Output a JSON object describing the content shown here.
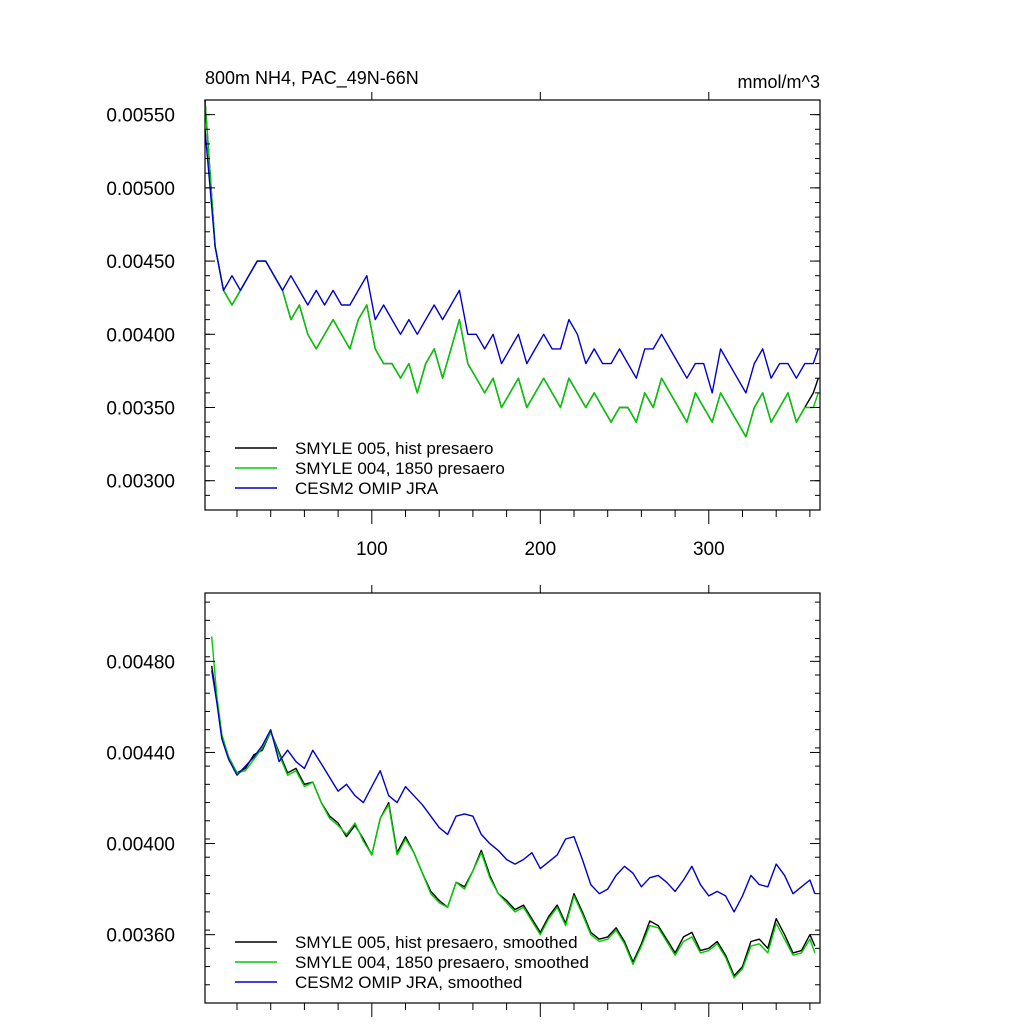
{
  "chart_data": [
    {
      "type": "line",
      "title": "800m NH4, PAC_49N-66N",
      "units_label": "mmol/m^3",
      "xlim": [
        1,
        366
      ],
      "ylim": [
        0.0028,
        0.0056
      ],
      "xticks": [
        100,
        200,
        300
      ],
      "xtick_labels": [
        "100",
        "200",
        "300"
      ],
      "yticks": [
        0.0055,
        0.005,
        0.0045,
        0.004,
        0.0035,
        0.003
      ],
      "ytick_labels": [
        "0.00550",
        "0.00500",
        "0.00450",
        "0.00400",
        "0.00350",
        "0.00300"
      ],
      "legend_position": "bottom-left",
      "series": [
        {
          "name": "SMYLE 005, hist presaero",
          "color": "#000000",
          "x": [
            1,
            4,
            7,
            12,
            17,
            22,
            27,
            32,
            37,
            42,
            47,
            52,
            57,
            62,
            67,
            72,
            77,
            82,
            87,
            92,
            97,
            102,
            107,
            112,
            117,
            122,
            127,
            132,
            137,
            142,
            147,
            152,
            157,
            162,
            167,
            172,
            177,
            182,
            187,
            192,
            197,
            202,
            207,
            212,
            217,
            222,
            227,
            232,
            237,
            242,
            247,
            252,
            257,
            262,
            267,
            272,
            277,
            282,
            287,
            292,
            297,
            302,
            307,
            312,
            317,
            322,
            327,
            332,
            337,
            342,
            347,
            352,
            357,
            362,
            365
          ],
          "y": [
            0.0056,
            0.0051,
            0.0046,
            0.0043,
            0.0042,
            0.0043,
            0.0044,
            0.0045,
            0.0045,
            0.0044,
            0.0043,
            0.0041,
            0.0042,
            0.004,
            0.0039,
            0.004,
            0.0041,
            0.004,
            0.0039,
            0.0041,
            0.0042,
            0.0039,
            0.0038,
            0.0038,
            0.0037,
            0.0038,
            0.0036,
            0.0038,
            0.0039,
            0.0037,
            0.0039,
            0.0041,
            0.0038,
            0.0037,
            0.0036,
            0.0037,
            0.0035,
            0.0036,
            0.0037,
            0.0035,
            0.0036,
            0.0037,
            0.0036,
            0.0035,
            0.0037,
            0.0036,
            0.0035,
            0.0036,
            0.0035,
            0.0034,
            0.0035,
            0.0035,
            0.0034,
            0.0036,
            0.0035,
            0.0037,
            0.0036,
            0.0035,
            0.0034,
            0.0036,
            0.0035,
            0.0034,
            0.0036,
            0.0035,
            0.0034,
            0.0033,
            0.0035,
            0.0036,
            0.0034,
            0.0035,
            0.0036,
            0.0034,
            0.0035,
            0.0036,
            0.0037
          ]
        },
        {
          "name": "SMYLE 004, 1850 presaero",
          "color": "#00cc00",
          "x": [
            1,
            4,
            7,
            12,
            17,
            22,
            27,
            32,
            37,
            42,
            47,
            52,
            57,
            62,
            67,
            72,
            77,
            82,
            87,
            92,
            97,
            102,
            107,
            112,
            117,
            122,
            127,
            132,
            137,
            142,
            147,
            152,
            157,
            162,
            167,
            172,
            177,
            182,
            187,
            192,
            197,
            202,
            207,
            212,
            217,
            222,
            227,
            232,
            237,
            242,
            247,
            252,
            257,
            262,
            267,
            272,
            277,
            282,
            287,
            292,
            297,
            302,
            307,
            312,
            317,
            322,
            327,
            332,
            337,
            342,
            347,
            352,
            357,
            362,
            365
          ],
          "y": [
            0.0056,
            0.0051,
            0.0046,
            0.0043,
            0.0042,
            0.0043,
            0.0044,
            0.0045,
            0.0045,
            0.0044,
            0.0043,
            0.0041,
            0.0042,
            0.004,
            0.0039,
            0.004,
            0.0041,
            0.004,
            0.0039,
            0.0041,
            0.0042,
            0.0039,
            0.0038,
            0.0038,
            0.0037,
            0.0038,
            0.0036,
            0.0038,
            0.0039,
            0.0037,
            0.0039,
            0.0041,
            0.0038,
            0.0037,
            0.0036,
            0.0037,
            0.0035,
            0.0036,
            0.0037,
            0.0035,
            0.0036,
            0.0037,
            0.0036,
            0.0035,
            0.0037,
            0.0036,
            0.0035,
            0.0036,
            0.0035,
            0.0034,
            0.0035,
            0.0035,
            0.0034,
            0.0036,
            0.0035,
            0.0037,
            0.0036,
            0.0035,
            0.0034,
            0.0036,
            0.0035,
            0.0034,
            0.0036,
            0.0035,
            0.0034,
            0.0033,
            0.0035,
            0.0036,
            0.0034,
            0.0035,
            0.0036,
            0.0034,
            0.0035,
            0.0035,
            0.0036
          ]
        },
        {
          "name": "CESM2 OMIP JRA",
          "color": "#0000cc",
          "x": [
            1,
            4,
            7,
            12,
            17,
            22,
            27,
            32,
            37,
            42,
            47,
            52,
            57,
            62,
            67,
            72,
            77,
            82,
            87,
            92,
            97,
            102,
            107,
            112,
            117,
            122,
            127,
            132,
            137,
            142,
            147,
            152,
            157,
            162,
            167,
            172,
            177,
            182,
            187,
            192,
            197,
            202,
            207,
            212,
            217,
            222,
            227,
            232,
            237,
            242,
            247,
            252,
            257,
            262,
            267,
            272,
            277,
            282,
            287,
            292,
            297,
            302,
            307,
            312,
            317,
            322,
            327,
            332,
            337,
            342,
            347,
            352,
            357,
            362,
            365
          ],
          "y": [
            0.0054,
            0.005,
            0.0046,
            0.0043,
            0.0044,
            0.0043,
            0.0044,
            0.0045,
            0.0045,
            0.0044,
            0.0043,
            0.0044,
            0.0043,
            0.0042,
            0.0043,
            0.0042,
            0.0043,
            0.0042,
            0.0042,
            0.0043,
            0.0044,
            0.0041,
            0.0042,
            0.0041,
            0.004,
            0.0041,
            0.004,
            0.0041,
            0.0042,
            0.0041,
            0.0042,
            0.0043,
            0.004,
            0.004,
            0.0039,
            0.004,
            0.0038,
            0.0039,
            0.004,
            0.0038,
            0.0039,
            0.004,
            0.0039,
            0.0039,
            0.0041,
            0.004,
            0.0038,
            0.0039,
            0.0038,
            0.0038,
            0.0039,
            0.0038,
            0.0037,
            0.0039,
            0.0039,
            0.004,
            0.0039,
            0.0038,
            0.0037,
            0.0038,
            0.0038,
            0.0036,
            0.0039,
            0.0038,
            0.0037,
            0.0036,
            0.0038,
            0.0039,
            0.0037,
            0.0038,
            0.0038,
            0.0037,
            0.0038,
            0.0038,
            0.0039
          ]
        }
      ]
    },
    {
      "type": "line",
      "title": "",
      "units_label": "",
      "xlim": [
        1,
        366
      ],
      "ylim": [
        0.0033,
        0.0051
      ],
      "xticks": [
        100,
        200,
        300
      ],
      "xtick_labels": [
        "",
        "",
        ""
      ],
      "yticks": [
        0.0048,
        0.0044,
        0.004,
        0.0036
      ],
      "ytick_labels": [
        "0.00480",
        "0.00440",
        "0.00400",
        "0.00360"
      ],
      "legend_position": "bottom-left",
      "series": [
        {
          "name": "SMYLE 005, hist presaero, smoothed",
          "color": "#000000",
          "x": [
            5,
            8,
            11,
            15,
            20,
            25,
            30,
            35,
            40,
            45,
            50,
            55,
            60,
            65,
            70,
            75,
            80,
            85,
            90,
            95,
            100,
            105,
            110,
            115,
            120,
            125,
            130,
            135,
            140,
            145,
            150,
            155,
            160,
            165,
            170,
            175,
            180,
            185,
            190,
            195,
            200,
            205,
            210,
            215,
            220,
            225,
            230,
            235,
            240,
            245,
            250,
            255,
            260,
            265,
            270,
            275,
            280,
            285,
            290,
            295,
            300,
            305,
            310,
            315,
            320,
            325,
            330,
            335,
            340,
            345,
            350,
            355,
            360,
            363
          ],
          "y": [
            0.00478,
            0.00463,
            0.00447,
            0.00438,
            0.00431,
            0.00433,
            0.00439,
            0.00441,
            0.00449,
            0.0044,
            0.00431,
            0.00433,
            0.00426,
            0.00427,
            0.00418,
            0.00412,
            0.00409,
            0.00403,
            0.00408,
            0.00402,
            0.00395,
            0.00411,
            0.00418,
            0.00396,
            0.00403,
            0.00396,
            0.00387,
            0.00379,
            0.00375,
            0.00372,
            0.00383,
            0.00381,
            0.00388,
            0.00397,
            0.00386,
            0.00378,
            0.00375,
            0.00371,
            0.00373,
            0.00367,
            0.00361,
            0.00368,
            0.00373,
            0.00365,
            0.00378,
            0.0037,
            0.00361,
            0.00358,
            0.00359,
            0.00363,
            0.00357,
            0.00348,
            0.00356,
            0.00366,
            0.00364,
            0.00358,
            0.00352,
            0.00359,
            0.00361,
            0.00353,
            0.00354,
            0.00357,
            0.00351,
            0.00342,
            0.00346,
            0.00357,
            0.00358,
            0.00354,
            0.00367,
            0.0036,
            0.00352,
            0.00353,
            0.0036,
            0.00355
          ]
        },
        {
          "name": "SMYLE 004, 1850 presaero, smoothed",
          "color": "#00cc00",
          "x": [
            5,
            8,
            11,
            15,
            20,
            25,
            30,
            35,
            40,
            45,
            50,
            55,
            60,
            65,
            70,
            75,
            80,
            85,
            90,
            95,
            100,
            105,
            110,
            115,
            120,
            125,
            130,
            135,
            140,
            145,
            150,
            155,
            160,
            165,
            170,
            175,
            180,
            185,
            190,
            195,
            200,
            205,
            210,
            215,
            220,
            225,
            230,
            235,
            240,
            245,
            250,
            255,
            260,
            265,
            270,
            275,
            280,
            285,
            290,
            295,
            300,
            305,
            310,
            315,
            320,
            325,
            330,
            335,
            340,
            345,
            350,
            355,
            360,
            363
          ],
          "y": [
            0.00491,
            0.00465,
            0.00448,
            0.00438,
            0.00431,
            0.00432,
            0.00437,
            0.00442,
            0.00449,
            0.00439,
            0.0043,
            0.00432,
            0.00425,
            0.00427,
            0.00418,
            0.00411,
            0.00408,
            0.00404,
            0.00409,
            0.00401,
            0.00395,
            0.00411,
            0.00417,
            0.00395,
            0.00402,
            0.00396,
            0.00387,
            0.00378,
            0.00374,
            0.00372,
            0.00383,
            0.0038,
            0.00388,
            0.00396,
            0.00385,
            0.00378,
            0.00374,
            0.0037,
            0.00372,
            0.00366,
            0.0036,
            0.00367,
            0.00372,
            0.00364,
            0.00377,
            0.00369,
            0.0036,
            0.00357,
            0.00358,
            0.00362,
            0.00356,
            0.00347,
            0.00355,
            0.00364,
            0.00363,
            0.00357,
            0.00351,
            0.00357,
            0.00359,
            0.00352,
            0.00353,
            0.00356,
            0.0035,
            0.00341,
            0.00345,
            0.00355,
            0.00356,
            0.00352,
            0.00365,
            0.00358,
            0.00351,
            0.00352,
            0.00358,
            0.00352
          ]
        },
        {
          "name": "CESM2 OMIP JRA, smoothed",
          "color": "#0000cc",
          "x": [
            5,
            8,
            11,
            15,
            20,
            25,
            30,
            35,
            40,
            45,
            50,
            55,
            60,
            65,
            70,
            75,
            80,
            85,
            90,
            95,
            100,
            105,
            110,
            115,
            120,
            125,
            130,
            135,
            140,
            145,
            150,
            155,
            160,
            165,
            170,
            175,
            180,
            185,
            190,
            195,
            200,
            205,
            210,
            215,
            220,
            225,
            230,
            235,
            240,
            245,
            250,
            255,
            260,
            265,
            270,
            275,
            280,
            285,
            290,
            295,
            300,
            305,
            310,
            315,
            320,
            325,
            330,
            335,
            340,
            345,
            350,
            355,
            360,
            363
          ],
          "y": [
            0.00476,
            0.00462,
            0.00446,
            0.00437,
            0.0043,
            0.00434,
            0.00438,
            0.00443,
            0.0045,
            0.00436,
            0.00441,
            0.00436,
            0.00433,
            0.00441,
            0.00435,
            0.00429,
            0.00423,
            0.00426,
            0.00421,
            0.00418,
            0.00425,
            0.00432,
            0.00421,
            0.00418,
            0.00425,
            0.00421,
            0.00417,
            0.00412,
            0.00407,
            0.00404,
            0.00412,
            0.00413,
            0.00412,
            0.00404,
            0.004,
            0.00397,
            0.00393,
            0.00391,
            0.00393,
            0.00396,
            0.00389,
            0.00392,
            0.00395,
            0.00402,
            0.00403,
            0.00393,
            0.00382,
            0.00378,
            0.0038,
            0.00386,
            0.0039,
            0.00387,
            0.00381,
            0.00385,
            0.00386,
            0.00383,
            0.00379,
            0.00384,
            0.0039,
            0.00382,
            0.00377,
            0.00379,
            0.00377,
            0.0037,
            0.00377,
            0.00386,
            0.00382,
            0.00381,
            0.00391,
            0.00386,
            0.00378,
            0.00381,
            0.00384,
            0.00378
          ]
        }
      ]
    }
  ]
}
